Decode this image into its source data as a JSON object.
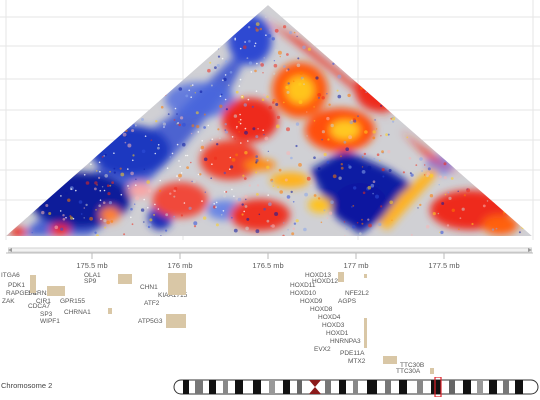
{
  "heatmap": {
    "palette": [
      "#0a1aa0",
      "#2f4fd8",
      "#8aa6ea",
      "#cfcfd2",
      "#f7b6b6",
      "#ee2a1a",
      "#ff7a00",
      "#ffd21f"
    ]
  },
  "ruler": {
    "ticks": [
      "175.5 mb",
      "176 mb",
      "176.5 mb",
      "177 mb",
      "177.5 mb"
    ]
  },
  "genes": [
    "ITGA6",
    "PDK1",
    "RAPGEF4",
    "ZAK",
    "CDCA7",
    "SP3",
    "OLA1",
    "SP9",
    "CIR1",
    "SCRN3",
    "GPR155",
    "WIPF1",
    "CHRNA1",
    "CHN1",
    "ATF2",
    "ATP5G3",
    "KIAA1715",
    "EVX2",
    "HOXD13",
    "HOXD12",
    "HOXD11",
    "HOXD10",
    "HOXD9",
    "HOXD8",
    "HOXD4",
    "HOXD3",
    "HOXD1",
    "MTX2",
    "HNRNPA3",
    "NFE2L2",
    "AGPS",
    "TTC30B",
    "TTC30A",
    "PDE11A"
  ],
  "chromosome": {
    "label": "Chromosome 2"
  }
}
